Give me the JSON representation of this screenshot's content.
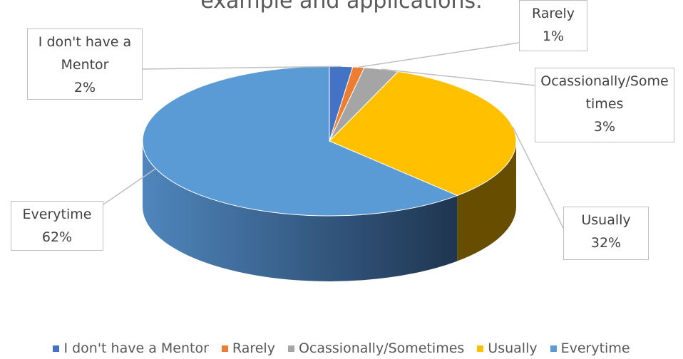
{
  "chart_data": {
    "type": "pie",
    "title": "example and applications.",
    "categories": [
      "I don't have a Mentor",
      "Rarely",
      "Ocassionally/Sometimes",
      "Usually",
      "Everytime"
    ],
    "values": [
      2,
      1,
      3,
      32,
      62
    ],
    "value_labels": [
      "2%",
      "1%",
      "3%",
      "32%",
      "62%"
    ],
    "colors": [
      "#4472c4",
      "#ed7d31",
      "#a5a5a5",
      "#ffc000",
      "#5b9bd5"
    ],
    "legend": "bottom"
  }
}
